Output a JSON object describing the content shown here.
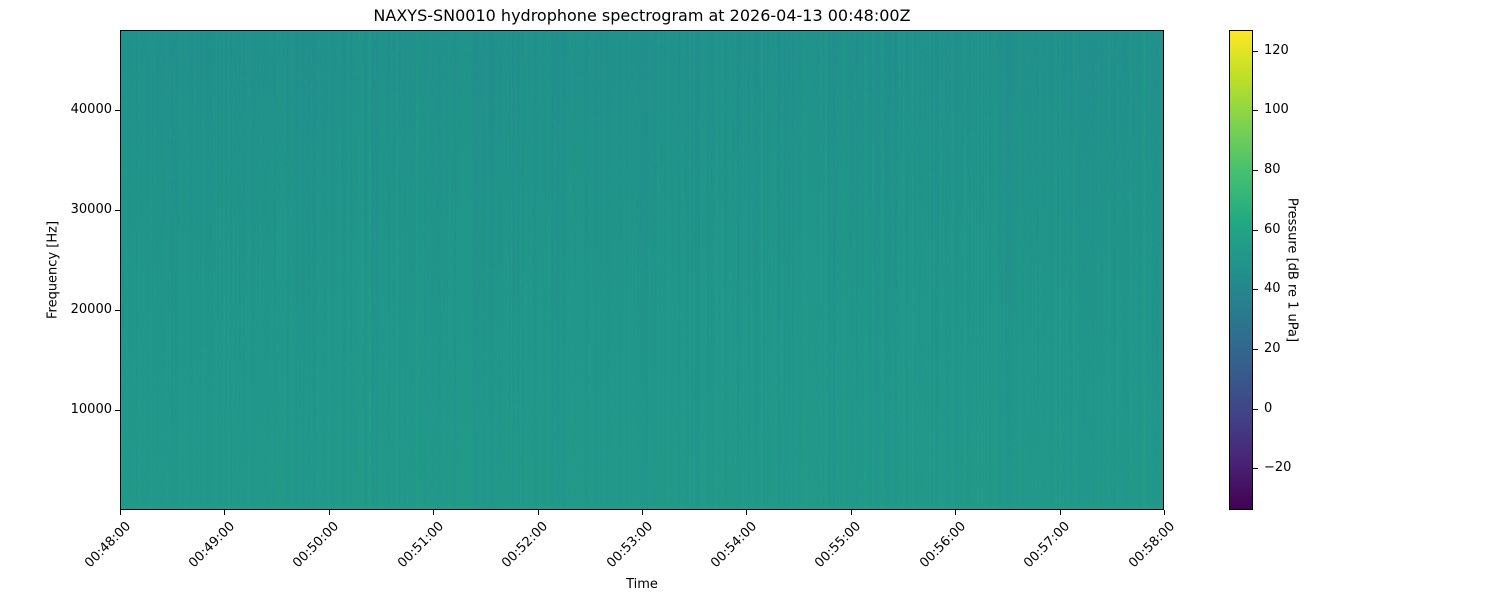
{
  "chart_data": {
    "type": "heatmap",
    "title": "NAXYS-SN0010 hydrophone spectrogram at 2026-04-13 00:48:00Z",
    "xlabel": "Time",
    "ylabel": "Frequency [Hz]",
    "colorbar_label": "Pressure [dB re 1 uPa]",
    "colormap": "viridis",
    "xlim": [
      "00:48:00",
      "00:58:00"
    ],
    "ylim": [
      0,
      48000
    ],
    "clim": [
      -34,
      127
    ],
    "x_ticks": [
      "00:48:00",
      "00:49:00",
      "00:50:00",
      "00:51:00",
      "00:52:00",
      "00:53:00",
      "00:54:00",
      "00:55:00",
      "00:56:00",
      "00:57:00",
      "00:58:00"
    ],
    "y_ticks": [
      10000,
      20000,
      30000,
      40000
    ],
    "y_tick_labels": [
      "10000",
      "20000",
      "30000",
      "40000"
    ],
    "colorbar_ticks": [
      -20,
      0,
      20,
      40,
      60,
      80,
      100,
      120
    ],
    "colorbar_tick_labels": [
      "−20",
      "0",
      "20",
      "40",
      "60",
      "80",
      "100",
      "120"
    ],
    "typical_level_db": {
      "low_freq": 52,
      "high_freq": 47
    },
    "grid": false
  }
}
